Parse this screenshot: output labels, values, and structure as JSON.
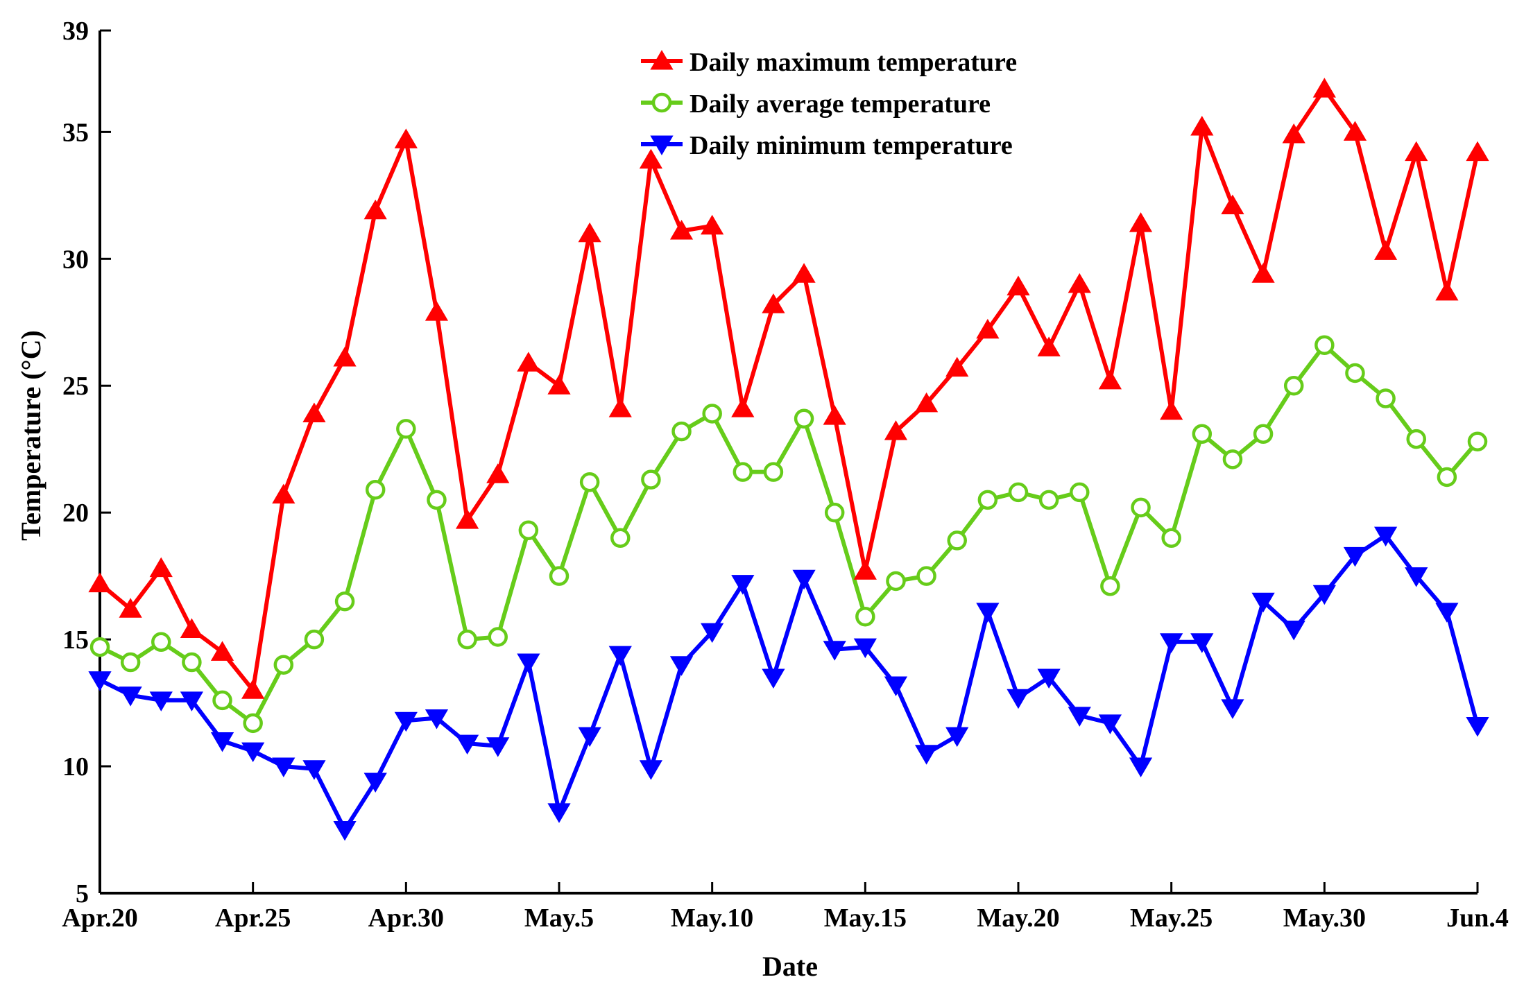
{
  "chart_data": {
    "type": "line",
    "title": "",
    "xlabel": "Date",
    "ylabel": "Temperature (°C)",
    "ylim": [
      5,
      39
    ],
    "yticks": [
      5,
      10,
      15,
      20,
      25,
      30,
      35,
      39
    ],
    "xlim": [
      0,
      45
    ],
    "xticks": [
      {
        "day": 0,
        "label": "Apr.20"
      },
      {
        "day": 5,
        "label": "Apr.25"
      },
      {
        "day": 10,
        "label": "Apr.30"
      },
      {
        "day": 15,
        "label": "May.5"
      },
      {
        "day": 20,
        "label": "May.10"
      },
      {
        "day": 25,
        "label": "May.15"
      },
      {
        "day": 30,
        "label": "May.20"
      },
      {
        "day": 35,
        "label": "May.25"
      },
      {
        "day": 40,
        "label": "May.30"
      },
      {
        "day": 45,
        "label": "Jun.4"
      }
    ],
    "x": [
      0,
      1,
      2,
      3,
      4,
      5,
      6,
      7,
      8,
      9,
      10,
      11,
      12,
      13,
      14,
      15,
      16,
      17,
      18,
      19,
      20,
      21,
      22,
      23,
      24,
      25,
      26,
      27,
      28,
      29,
      30,
      31,
      32,
      33,
      34,
      35,
      36,
      37,
      38,
      39,
      40,
      41,
      42,
      43,
      44,
      45
    ],
    "grid": false,
    "legend_position": "top-center",
    "series": [
      {
        "name": "Daily maximum temperature",
        "color": "#ff0000",
        "marker": "triangle-up",
        "values": [
          17.2,
          16.2,
          17.8,
          15.4,
          14.5,
          13.0,
          20.7,
          23.9,
          26.1,
          31.9,
          34.7,
          27.9,
          19.7,
          21.5,
          25.9,
          25.0,
          31.0,
          24.1,
          33.9,
          31.1,
          31.3,
          24.1,
          28.2,
          29.4,
          23.8,
          17.7,
          23.2,
          24.3,
          25.7,
          27.2,
          28.9,
          26.5,
          29.0,
          25.2,
          31.4,
          24.0,
          35.2,
          32.1,
          29.4,
          34.9,
          36.7,
          35.0,
          30.3,
          34.2,
          28.7,
          34.2
        ]
      },
      {
        "name": "Daily average temperature",
        "color": "#66cc1a",
        "marker": "circle",
        "values": [
          14.7,
          14.1,
          14.9,
          14.1,
          12.6,
          11.7,
          14.0,
          15.0,
          16.5,
          20.9,
          23.3,
          20.5,
          15.0,
          15.1,
          19.3,
          17.5,
          21.2,
          19.0,
          21.3,
          23.2,
          23.9,
          21.6,
          21.6,
          23.7,
          20.0,
          15.9,
          17.3,
          17.5,
          18.9,
          20.5,
          20.8,
          20.5,
          20.8,
          17.1,
          20.2,
          19.0,
          23.1,
          22.1,
          23.1,
          25.0,
          26.6,
          25.5,
          24.5,
          22.9,
          21.4,
          22.8
        ]
      },
      {
        "name": "Daily minimum temperature",
        "color": "#0000ff",
        "marker": "triangle-down",
        "values": [
          13.4,
          12.8,
          12.6,
          12.6,
          11.0,
          10.6,
          10.0,
          9.9,
          7.5,
          9.4,
          11.8,
          11.9,
          10.9,
          10.8,
          14.1,
          8.2,
          11.2,
          14.4,
          9.9,
          14.0,
          15.3,
          17.2,
          13.5,
          17.4,
          14.6,
          14.7,
          13.2,
          10.5,
          11.2,
          16.1,
          12.7,
          13.5,
          12.0,
          11.7,
          10.0,
          14.9,
          14.9,
          12.3,
          16.5,
          15.4,
          16.8,
          18.3,
          19.1,
          17.5,
          16.1,
          11.6
        ]
      }
    ]
  }
}
